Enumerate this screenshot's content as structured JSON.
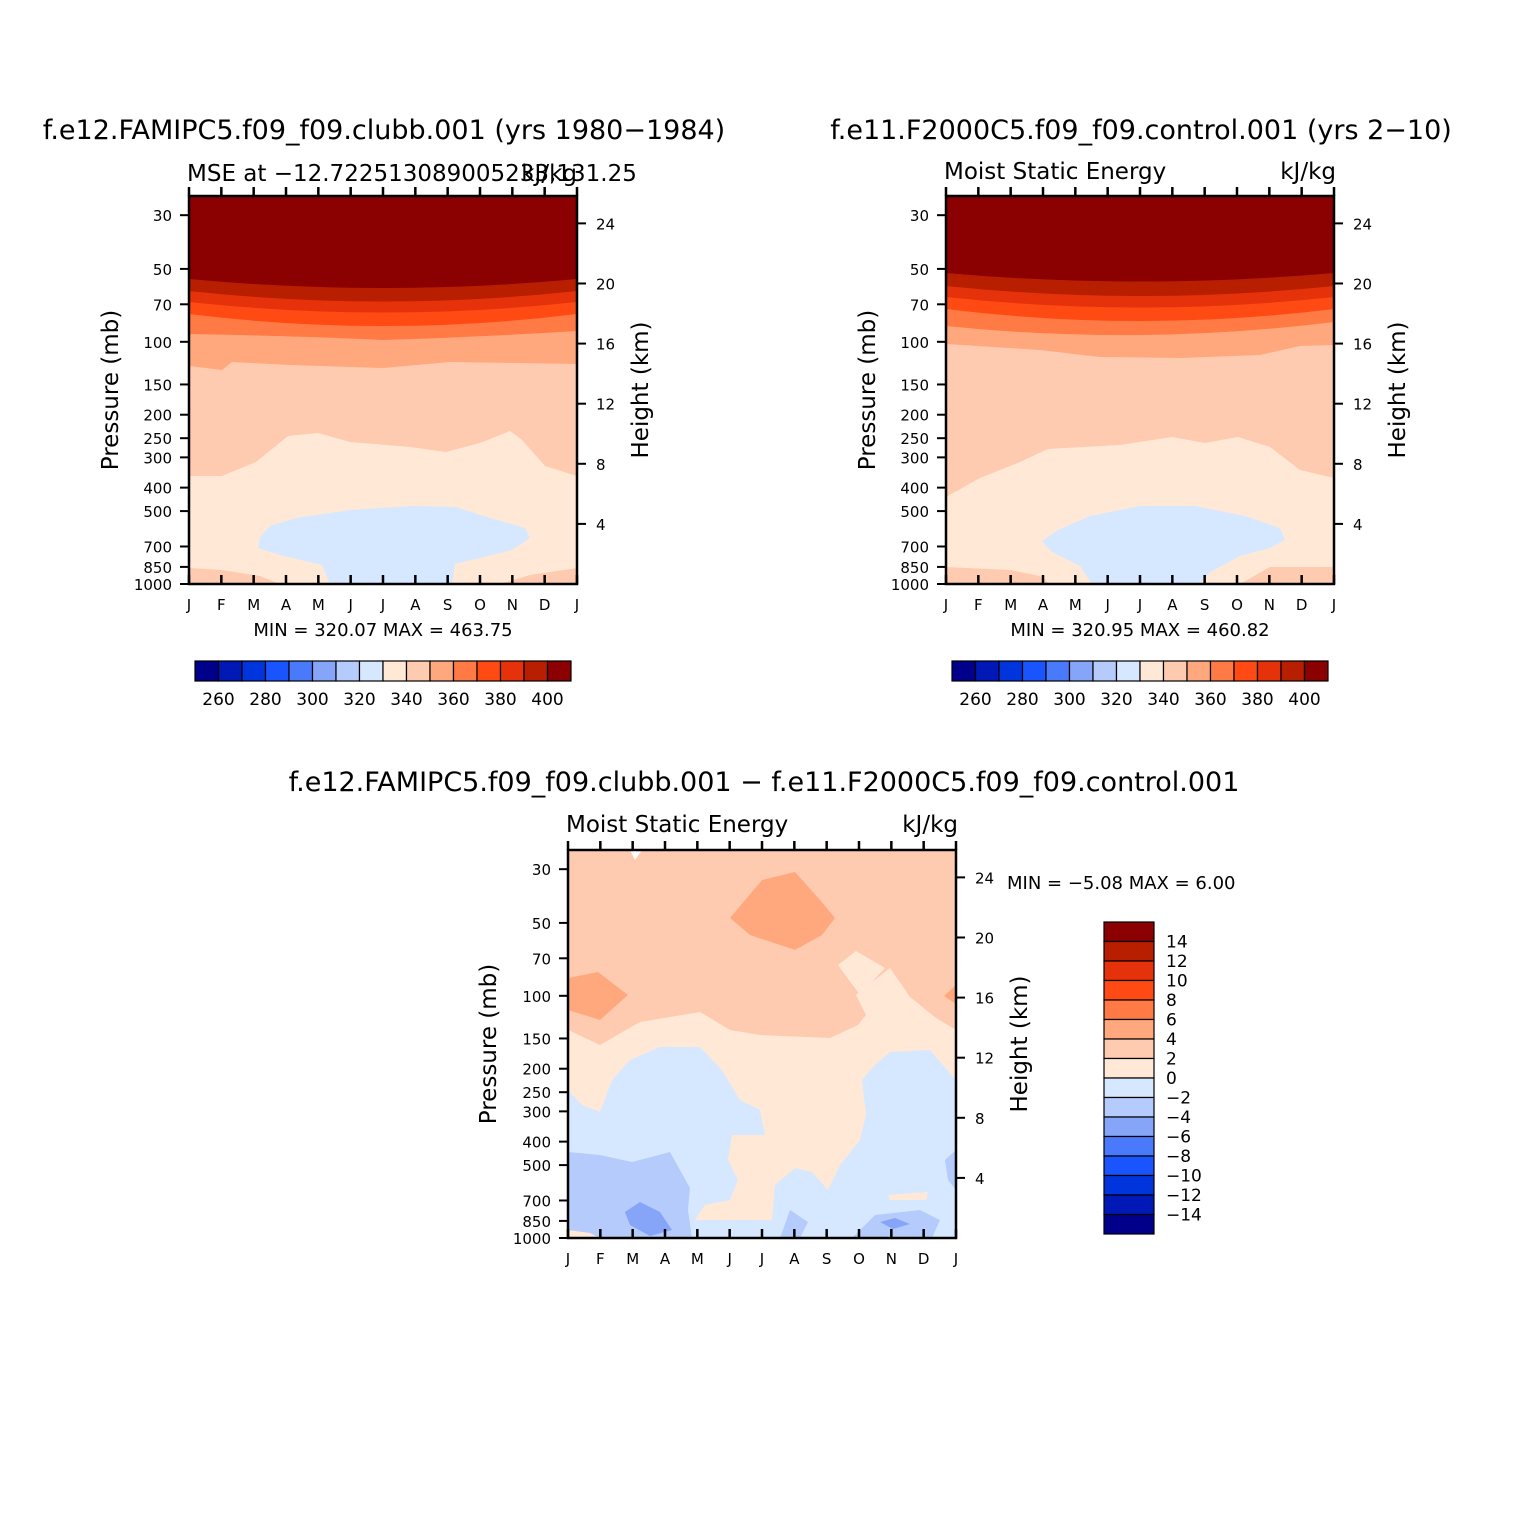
{
  "figure": {
    "panel_a": {
      "title": "f.e12.FAMIPC5.f09_f09.clubb.001 (yrs 1980−1984)",
      "subtitle_left": "MSE at −12.722513089005233,131.25",
      "subtitle_right": "kJ/kg",
      "stats": "MIN = 320.07 MAX = 463.75"
    },
    "panel_b": {
      "title": "f.e11.F2000C5.f09_f09.control.001 (yrs 2−10)",
      "subtitle_left": "Moist Static Energy",
      "subtitle_right": "kJ/kg",
      "stats": "MIN = 320.95 MAX = 460.82"
    },
    "panel_c": {
      "title": "f.e12.FAMIPC5.f09_f09.clubb.001 − f.e11.F2000C5.f09_f09.control.001",
      "subtitle_left": "Moist Static Energy",
      "subtitle_right": "kJ/kg",
      "stats": "MIN =   −5.08 MAX =     6.00"
    }
  },
  "colors": {
    "mse_scale": [
      "#00008b",
      "#0018b5",
      "#0035de",
      "#1a54ff",
      "#4a7afc",
      "#86a5f9",
      "#b5cbfb",
      "#d6e8ff",
      "#ffe9d6",
      "#ffcbb0",
      "#ffa87e",
      "#ff7a45",
      "#ff4a14",
      "#e6320a",
      "#b81e00",
      "#8b0000"
    ],
    "diff_scale": [
      "#00008b",
      "#0018b5",
      "#0035de",
      "#1a54ff",
      "#4a7afc",
      "#86a5f9",
      "#b5cbfb",
      "#d6e8ff",
      "#ffe9d6",
      "#ffcbb0",
      "#ffa87e",
      "#ff7a45",
      "#ff4a14",
      "#e6320a",
      "#b81e00",
      "#8b0000"
    ]
  },
  "chart_data": [
    {
      "type": "heatmap",
      "name": "panel_a",
      "title": "f.e12.FAMIPC5.f09_f09.clubb.001 (yrs 1980−1984)",
      "xlabel": "",
      "ylabel": "Pressure (mb)",
      "ylabel_right": "Height (km)",
      "x_ticks": [
        "J",
        "F",
        "M",
        "A",
        "M",
        "J",
        "J",
        "A",
        "S",
        "O",
        "N",
        "D",
        "J"
      ],
      "y_ticks": [
        30,
        50,
        70,
        100,
        150,
        200,
        250,
        300,
        400,
        500,
        700,
        850,
        1000
      ],
      "y_right_ticks": [
        24,
        20,
        16,
        12,
        8,
        4
      ],
      "ylim": [
        1000,
        25
      ],
      "y_scale": "log",
      "levels": [
        250,
        260,
        270,
        280,
        290,
        300,
        310,
        320,
        330,
        340,
        350,
        360,
        370,
        380,
        390,
        400
      ],
      "colorbar_labels": [
        260,
        280,
        300,
        320,
        340,
        360,
        380,
        400
      ],
      "min": 320.07,
      "max": 463.75
    },
    {
      "type": "heatmap",
      "name": "panel_b",
      "title": "f.e11.F2000C5.f09_f09.control.001 (yrs 2−10)",
      "xlabel": "",
      "ylabel": "Pressure (mb)",
      "ylabel_right": "Height (km)",
      "x_ticks": [
        "J",
        "F",
        "M",
        "A",
        "M",
        "J",
        "J",
        "A",
        "S",
        "O",
        "N",
        "D",
        "J"
      ],
      "y_ticks": [
        30,
        50,
        70,
        100,
        150,
        200,
        250,
        300,
        400,
        500,
        700,
        850,
        1000
      ],
      "y_right_ticks": [
        24,
        20,
        16,
        12,
        8,
        4
      ],
      "ylim": [
        1000,
        25
      ],
      "y_scale": "log",
      "levels": [
        250,
        260,
        270,
        280,
        290,
        300,
        310,
        320,
        330,
        340,
        350,
        360,
        370,
        380,
        390,
        400
      ],
      "colorbar_labels": [
        260,
        280,
        300,
        320,
        340,
        360,
        380,
        400
      ],
      "min": 320.95,
      "max": 460.82
    },
    {
      "type": "heatmap",
      "name": "panel_c",
      "title": "f.e12.FAMIPC5.f09_f09.clubb.001 − f.e11.F2000C5.f09_f09.control.001",
      "xlabel": "",
      "ylabel": "Pressure (mb)",
      "ylabel_right": "Height (km)",
      "x_ticks": [
        "J",
        "F",
        "M",
        "A",
        "M",
        "J",
        "J",
        "A",
        "S",
        "O",
        "N",
        "D",
        "J"
      ],
      "y_ticks": [
        30,
        50,
        70,
        100,
        150,
        200,
        250,
        300,
        400,
        500,
        700,
        850,
        1000
      ],
      "y_right_ticks": [
        24,
        20,
        16,
        12,
        8,
        4
      ],
      "ylim": [
        1000,
        25
      ],
      "y_scale": "log",
      "levels": [
        -14,
        -12,
        -10,
        -8,
        -6,
        -4,
        -2,
        0,
        2,
        4,
        6,
        8,
        10,
        12,
        14
      ],
      "colorbar_labels": [
        "14",
        "12",
        "10",
        "8",
        "6",
        "4",
        "2",
        "0",
        "−2",
        "−4",
        "−6",
        "−8",
        "−10",
        "−12",
        "−14"
      ],
      "min": -5.08,
      "max": 6.0
    }
  ]
}
